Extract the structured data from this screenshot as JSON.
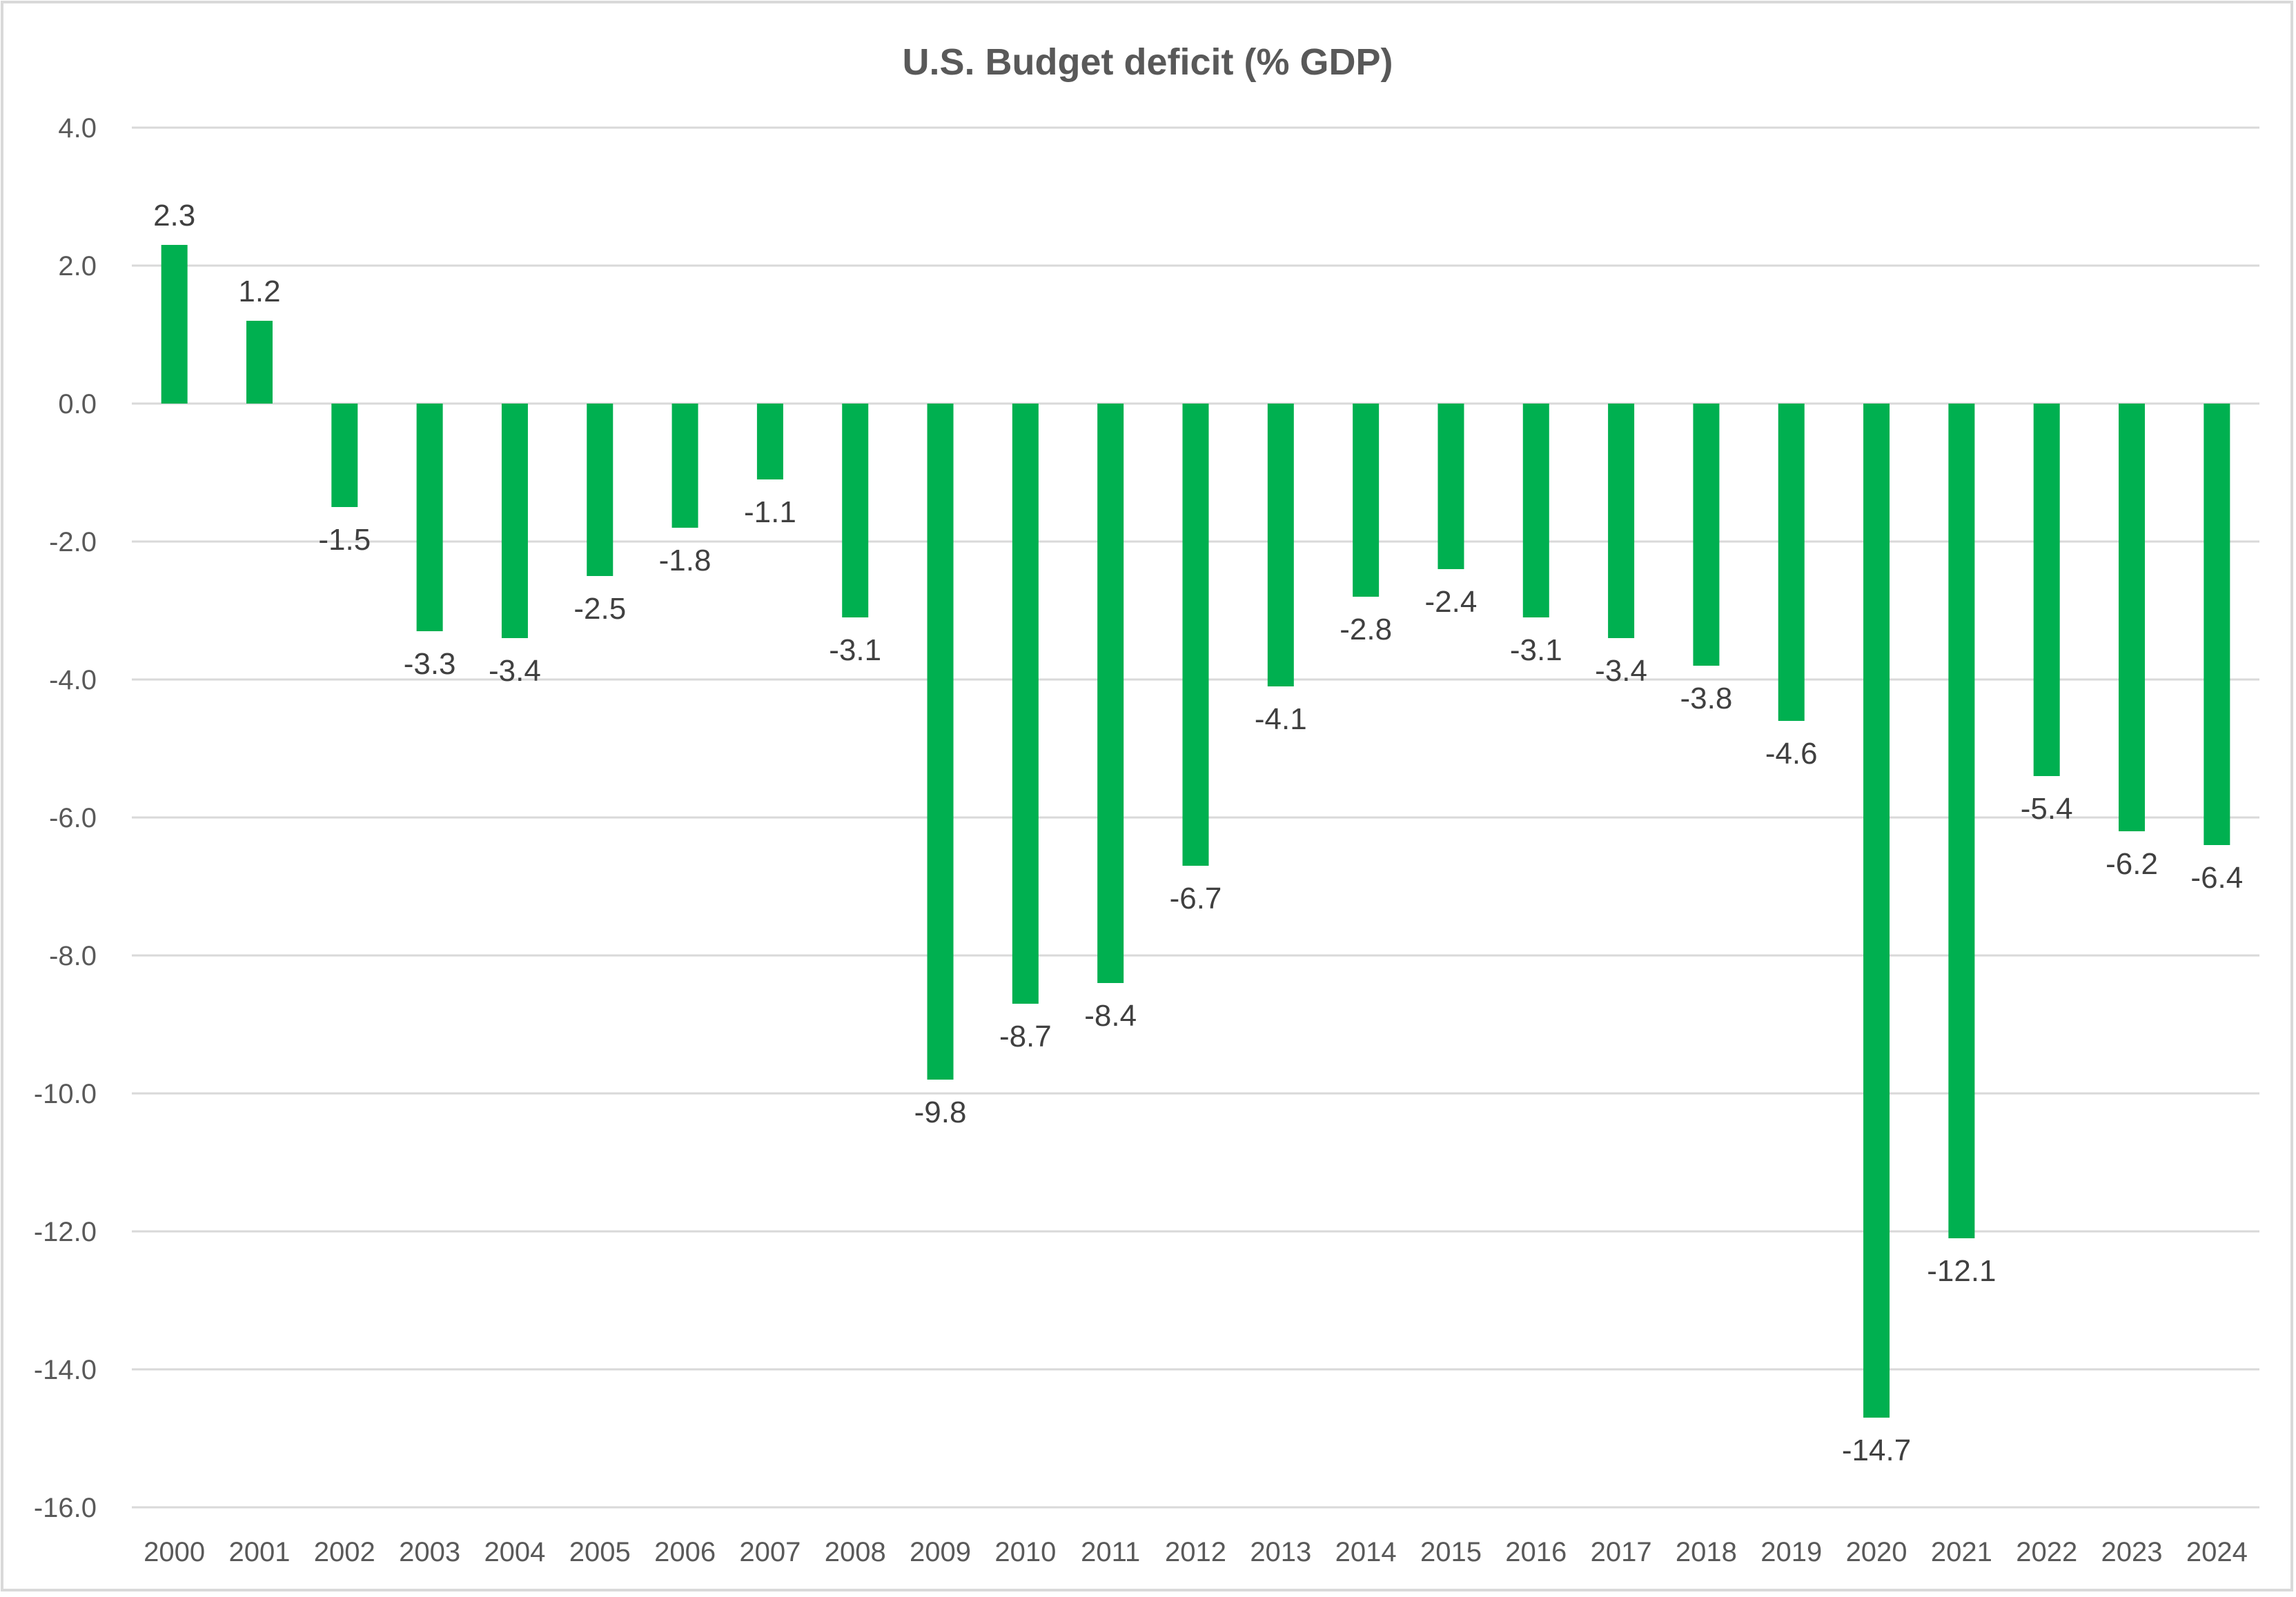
{
  "chart_data": {
    "type": "bar",
    "title": "U.S. Budget deficit (% GDP)",
    "xlabel": "",
    "ylabel": "",
    "ylim": [
      -16,
      4
    ],
    "yticks": [
      4,
      2,
      0,
      -2,
      -4,
      -6,
      -8,
      -10,
      -12,
      -14,
      -16
    ],
    "ytick_labels": [
      "4.0",
      "2.0",
      "0.0",
      "-2.0",
      "-4.0",
      "-6.0",
      "-8.0",
      "-10.0",
      "-12.0",
      "-14.0",
      "-16.0"
    ],
    "grid": true,
    "legend": "none",
    "categories": [
      "2000",
      "2001",
      "2002",
      "2003",
      "2004",
      "2005",
      "2006",
      "2007",
      "2008",
      "2009",
      "2010",
      "2011",
      "2012",
      "2013",
      "2014",
      "2015",
      "2016",
      "2017",
      "2018",
      "2019",
      "2020",
      "2021",
      "2022",
      "2023",
      "2024"
    ],
    "values": [
      2.3,
      1.2,
      -1.5,
      -3.3,
      -3.4,
      -2.5,
      -1.8,
      -1.1,
      -3.1,
      -9.8,
      -8.7,
      -8.4,
      -6.7,
      -4.1,
      -2.8,
      -2.4,
      -3.1,
      -3.4,
      -3.8,
      -4.6,
      -14.7,
      -12.1,
      -5.4,
      -6.2,
      -6.4
    ],
    "data_labels": [
      "2.3",
      "1.2",
      "-1.5",
      "-3.3",
      "-3.4",
      "-2.5",
      "-1.8",
      "-1.1",
      "-3.1",
      "-9.8",
      "-8.7",
      "-8.4",
      "-6.7",
      "-4.1",
      "-2.8",
      "-2.4",
      "-3.1",
      "-3.4",
      "-3.8",
      "-4.6",
      "-14.7",
      "-12.1",
      "-5.4",
      "-6.2",
      "-6.4"
    ],
    "colors": {
      "bar": "#00B050",
      "grid": "#D9D9D9",
      "text": "#595959",
      "label": "#404040",
      "border": "#D9D9D9"
    }
  }
}
